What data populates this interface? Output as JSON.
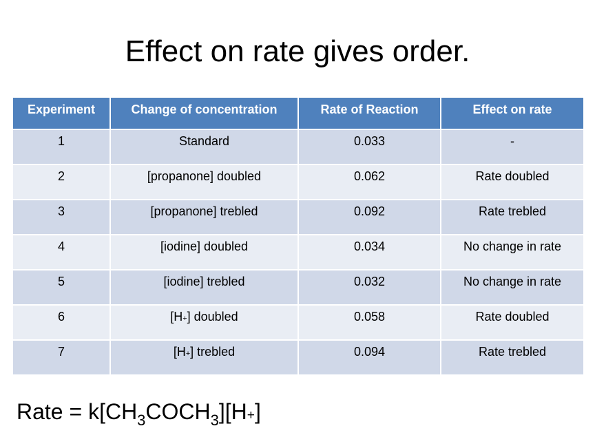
{
  "title": "Effect on rate gives order.",
  "table": {
    "headers": [
      "Experiment",
      "Change of concentration",
      "Rate of Reaction",
      "Effect on rate"
    ],
    "rows": [
      {
        "experiment": "1",
        "change": "Standard",
        "rate": "0.033",
        "effect": "-"
      },
      {
        "experiment": "2",
        "change": "[propanone] doubled",
        "rate": "0.062",
        "effect": "Rate doubled"
      },
      {
        "experiment": "3",
        "change": "[propanone] trebled",
        "rate": "0.092",
        "effect": "Rate trebled"
      },
      {
        "experiment": "4",
        "change": "[iodine] doubled",
        "rate": "0.034",
        "effect": "No change in rate"
      },
      {
        "experiment": "5",
        "change": "[iodine] trebled",
        "rate": "0.032",
        "effect": "No change in rate"
      },
      {
        "experiment": "6",
        "change_prefix": "[H",
        "change_sup": "+",
        "change_suffix": "] doubled",
        "rate": "0.058",
        "effect": "Rate doubled"
      },
      {
        "experiment": "7",
        "change_prefix": "[H",
        "change_sup": "+",
        "change_suffix": "] trebled",
        "rate": "0.094",
        "effect": "Rate trebled"
      }
    ]
  },
  "equation": {
    "part1": "Rate = k[CH",
    "sub1": "3",
    "part2": "COCH",
    "sub2": "3",
    "part3": "][H",
    "sup": "+",
    "part4": "]"
  }
}
